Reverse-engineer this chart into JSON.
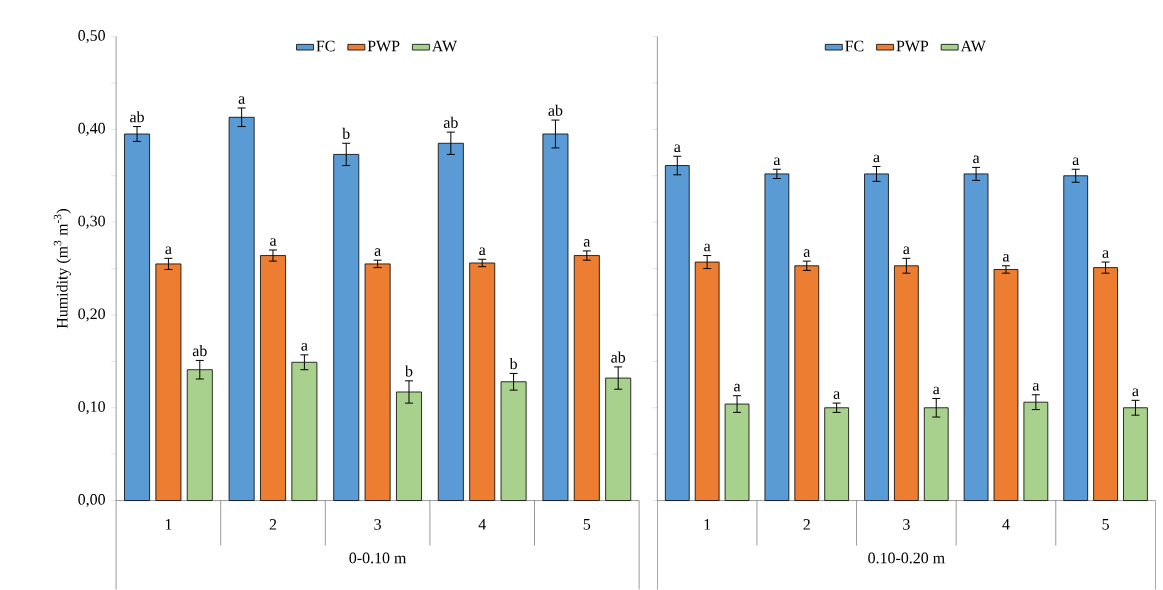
{
  "chart_data": [
    {
      "type": "bar",
      "ylabel": "Humidity  (m$^{3}$ m$^{-3}$)",
      "xlabel": "0-0.10 m",
      "categories": [
        "1",
        "2",
        "3",
        "4",
        "5"
      ],
      "series": [
        {
          "name": "FC",
          "color": "#5b9bd5",
          "values": [
            0.395,
            0.413,
            0.373,
            0.385,
            0.395
          ],
          "errors": [
            0.008,
            0.01,
            0.012,
            0.012,
            0.015
          ]
        },
        {
          "name": "PWP",
          "color": "#ed7d31",
          "values": [
            0.255,
            0.264,
            0.255,
            0.256,
            0.264
          ],
          "errors": [
            0.006,
            0.006,
            0.004,
            0.004,
            0.005
          ]
        },
        {
          "name": "AW",
          "color": "#a9d18e",
          "values": [
            0.141,
            0.149,
            0.117,
            0.128,
            0.132
          ],
          "errors": [
            0.01,
            0.008,
            0.012,
            0.009,
            0.012
          ]
        }
      ],
      "ylim": [
        0,
        0.5
      ],
      "yticks": [
        {
          "value": 0,
          "label": "0,00"
        },
        {
          "value": 0.05,
          "label": null
        },
        {
          "value": 0.1,
          "label": "0,10"
        },
        {
          "value": 0.15,
          "label": null
        },
        {
          "value": 0.2,
          "label": "0,20"
        },
        {
          "value": 0.25,
          "label": null
        },
        {
          "value": 0.3,
          "label": "0,30"
        },
        {
          "value": 0.35,
          "label": null
        },
        {
          "value": 0.4,
          "label": "0,40"
        },
        {
          "value": 0.45,
          "label": null
        },
        {
          "value": 0.5,
          "label": "0,50"
        }
      ],
      "legend": "top",
      "annotations": [
        "ab",
        "a",
        "b",
        "ab",
        "ab",
        "a",
        "a",
        "a",
        "a",
        "a",
        "ab",
        "a",
        "b",
        "b",
        "ab"
      ]
    },
    {
      "type": "bar",
      "xlabel": "0.10-0.20 m",
      "categories": [
        "1",
        "2",
        "3",
        "4",
        "5"
      ],
      "series": [
        {
          "name": "FC",
          "color": "#5b9bd5",
          "values": [
            0.361,
            0.352,
            0.352,
            0.352,
            0.35
          ],
          "errors": [
            0.01,
            0.005,
            0.008,
            0.007,
            0.007
          ]
        },
        {
          "name": "PWP",
          "color": "#ed7d31",
          "values": [
            0.257,
            0.253,
            0.253,
            0.249,
            0.251
          ],
          "errors": [
            0.007,
            0.005,
            0.008,
            0.004,
            0.006
          ]
        },
        {
          "name": "AW",
          "color": "#a9d18e",
          "values": [
            0.104,
            0.1,
            0.1,
            0.106,
            0.1
          ],
          "errors": [
            0.009,
            0.005,
            0.01,
            0.008,
            0.008
          ]
        }
      ],
      "ylim": [
        0,
        0.5
      ],
      "yticks": [
        {
          "value": 0,
          "label": null
        },
        {
          "value": 0.05,
          "label": null
        },
        {
          "value": 0.1,
          "label": null
        },
        {
          "value": 0.15,
          "label": null
        },
        {
          "value": 0.2,
          "label": null
        },
        {
          "value": 0.25,
          "label": null
        },
        {
          "value": 0.3,
          "label": null
        },
        {
          "value": 0.35,
          "label": null
        },
        {
          "value": 0.4,
          "label": null
        },
        {
          "value": 0.45,
          "label": null
        },
        {
          "value": 0.5,
          "label": null
        }
      ],
      "tick_labels": "x",
      "legend": "top",
      "annotations": [
        "a",
        "a",
        "a",
        "a",
        "a",
        "a",
        "a",
        "a",
        "a",
        "a",
        "a",
        "a",
        "a",
        "a",
        "a"
      ]
    }
  ]
}
